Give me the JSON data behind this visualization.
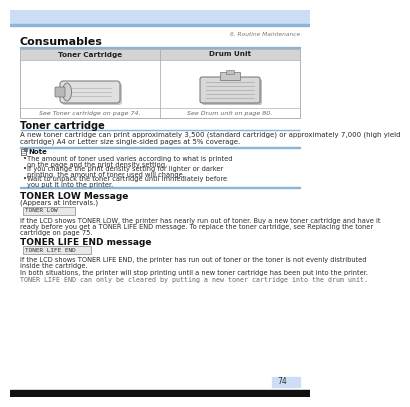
{
  "page_number": "74",
  "header_color": "#ccddf5",
  "header_line_color": "#8ab4d8",
  "chapter_text": "6. Routine Maintenance",
  "section_title": "Consumables",
  "table_header_bg": "#d4d4d4",
  "table_header_col1": "Toner Cartridge",
  "table_header_col2": "Drum Unit",
  "table_caption_col1": "See Toner cartridge on page 74.",
  "table_caption_col2": "See Drum unit on page 80.",
  "table_border_color": "#b0b0b0",
  "subsection1_title": "Toner cartridge",
  "blue_line_color": "#8ab4d8",
  "subsection1_body_line1": "A new toner cartridge can print approximately 3,500 (standard cartridge) or approximately 7,000 (high yield",
  "subsection1_body_line2": "cartridge) A4 or Letter size single-sided pages at 5% coverage.",
  "note_title": "Note",
  "note_bullet1": "The amount of toner used varies according to what is printed on the page and the print density setting.",
  "note_bullet2": "If you change the print density setting for lighter or darker printing, the amount of toner used will change.",
  "note_bullet3": "Wait to unpack the toner cartridge until immediately before you put it into the printer.",
  "toner_low_title": "TONER LOW Message",
  "toner_low_subtitle": "(Appears at intervals.)",
  "toner_low_box_text": "TONER LOW",
  "toner_low_body1": "If the LCD shows TONER LOW, the printer has nearly run out of toner. Buy a new toner cartridge and have it",
  "toner_low_body2": "ready before you get a TONER LIFE END message. To replace the toner cartridge, see Replacing the toner",
  "toner_low_body3": "cartridge on page 75.",
  "toner_life_title": "TONER LIFE END message",
  "toner_life_box_text": "TONER LIFE END",
  "toner_life_body1a": "If the LCD shows TONER LIFE END, the printer has run out of toner or the toner is not evenly distributed",
  "toner_life_body1b": "inside the cartridge.",
  "toner_life_body2": "In both situations, the printer will stop printing until a new toner cartridge has been put into the printer.",
  "toner_life_body3": "TONER LIFE END can only be cleared by putting a new toner cartridge into the drum unit.",
  "footer_page_num_bg": "#ccddf5",
  "bottom_bar_color": "#111111",
  "bg_color": "#ffffff",
  "text_color": "#2a2a2a",
  "gray_text": "#666666",
  "body_fontsize": 5.0,
  "small_fontsize": 4.5,
  "subsec_title_fontsize": 7.0,
  "chapter_fontsize": 4.2,
  "table_hdr_fontsize": 5.2,
  "mono_fontsize": 4.3
}
